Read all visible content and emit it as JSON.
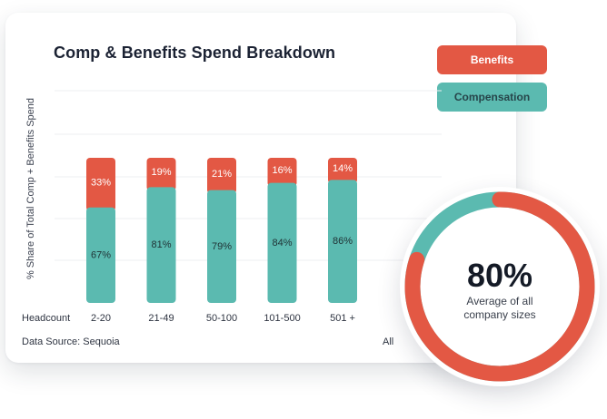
{
  "legend": {
    "benefits": "Benefits",
    "compensation": "Compensation"
  },
  "colors": {
    "benefits": "#e35844",
    "compensation": "#5bbab0",
    "grid": "#eeeff2"
  },
  "summary": {
    "percent": "80%",
    "caption_line1": "Average of all",
    "caption_line2": "company sizes"
  },
  "footer": {
    "source": "Data Source: Sequoia",
    "all_label": "All"
  },
  "chart_data": {
    "type": "bar",
    "stacked": true,
    "title": "Comp & Benefits Spend Breakdown",
    "ylabel": "% Share of Total Comp + Benefits Spend",
    "xlabel": "Headcount",
    "categories": [
      "2-20",
      "21-49",
      "50-100",
      "101-500",
      "501 +"
    ],
    "series": [
      {
        "name": "Compensation",
        "values": [
          67,
          81,
          79,
          84,
          86
        ],
        "labels": [
          "67%",
          "81%",
          "79%",
          "84%",
          "86%"
        ]
      },
      {
        "name": "Benefits",
        "values": [
          33,
          19,
          21,
          16,
          14
        ],
        "labels": [
          "33%",
          "19%",
          "21%",
          "16%",
          "14%"
        ]
      }
    ],
    "donut": {
      "value": 80,
      "label": "80%",
      "category": "All"
    }
  }
}
